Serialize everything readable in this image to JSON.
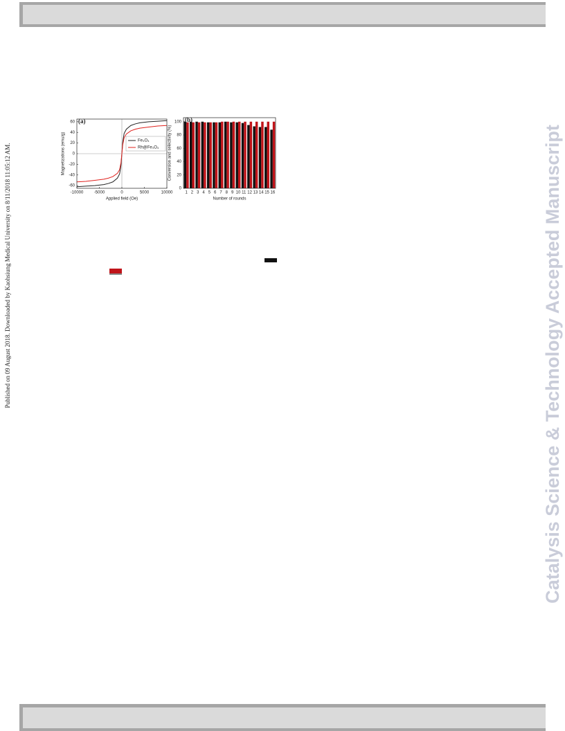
{
  "sidebar": {
    "published": "Published on 09 August 2018. Downloaded by Kaohsiung Medical University on 8/11/2018 11:05:12 AM.",
    "watermark": "Catalysis Science & Technology Accepted Manuscript"
  },
  "chart_data": [
    {
      "type": "line",
      "panel": "(a)",
      "x_label": "Applied field (Oe)",
      "y_label": "Magnetizations (emu/g)",
      "x": [
        -10000,
        -8000,
        -6000,
        -4000,
        -3000,
        -2000,
        -1000,
        -500,
        -200,
        0,
        200,
        500,
        1000,
        2000,
        3000,
        4000,
        6000,
        8000,
        10000
      ],
      "series": [
        {
          "name": "Fe₃O₄",
          "color": "#222222",
          "values": [
            -62,
            -61,
            -60,
            -58,
            -56,
            -53,
            -46,
            -38,
            -22,
            0,
            22,
            38,
            46,
            53,
            56,
            58,
            60,
            61,
            62
          ]
        },
        {
          "name": "Rh@Fe₃O₄",
          "color": "#e0201c",
          "values": [
            -53,
            -52,
            -50,
            -48,
            -46,
            -43,
            -37,
            -30,
            -17,
            0,
            17,
            30,
            37,
            43,
            46,
            48,
            50,
            52,
            53
          ]
        }
      ],
      "xlim": [
        -10000,
        10000
      ],
      "xticks": [
        -10000,
        -5000,
        0,
        5000,
        10000
      ],
      "ylim": [
        -65,
        65
      ],
      "yticks": [
        60,
        40,
        20,
        0,
        -20,
        -40,
        -60
      ]
    },
    {
      "type": "bar",
      "panel": "(b)",
      "x_label": "Number of rounds",
      "y_label": "Conversion and selectivity (%)",
      "categories": [
        "1",
        "2",
        "3",
        "4",
        "5",
        "6",
        "7",
        "8",
        "9",
        "10",
        "11",
        "12",
        "13",
        "14",
        "15",
        "16"
      ],
      "series": [
        {
          "color": "#111111",
          "values": [
            100,
            100,
            100,
            100,
            99,
            99,
            99,
            100,
            99,
            99,
            98,
            95,
            93,
            92,
            92,
            88
          ]
        },
        {
          "color": "#c0141a",
          "values": [
            99,
            99,
            99,
            99,
            99,
            99,
            100,
            100,
            100,
            100,
            100,
            100,
            100,
            100,
            100,
            100
          ]
        }
      ],
      "ylim": [
        0,
        106
      ],
      "yticks": [
        0,
        20,
        40,
        60,
        80,
        100
      ]
    }
  ]
}
